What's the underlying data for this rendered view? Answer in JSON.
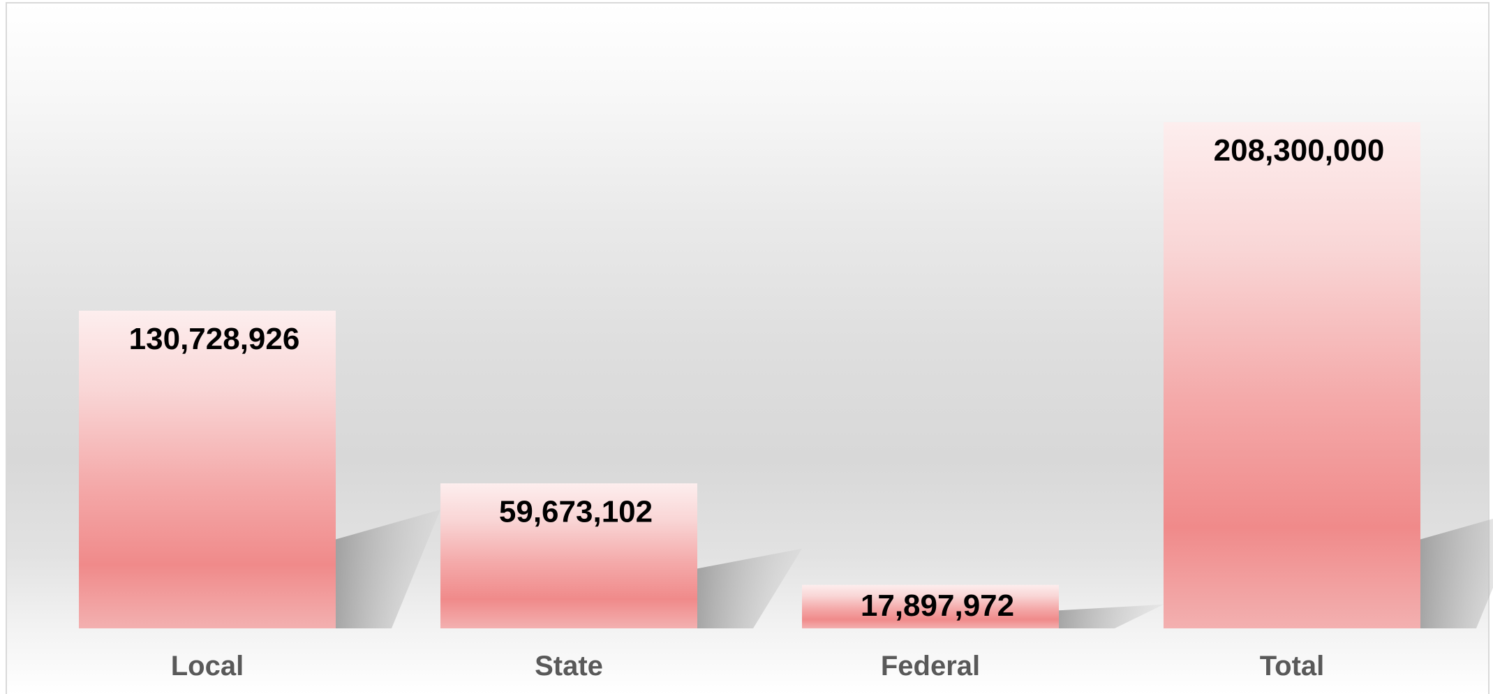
{
  "chart_data": {
    "type": "bar",
    "title": "",
    "xlabel": "",
    "ylabel": "",
    "categories": [
      "Local",
      "State",
      "Federal",
      "Total"
    ],
    "values": [
      130728926,
      59673102,
      17897972,
      208300000
    ],
    "value_labels": [
      "130,728,926",
      "59,673,102",
      "17,897,972",
      "208,300,000"
    ],
    "ylim": [
      0,
      250000000
    ],
    "grid": false,
    "legend": "none",
    "colors": {
      "bar_top": "#fdeeee",
      "bar_mid": "#f08a8a",
      "bar_bottom": "#f3b0b0",
      "shadow": "#9a9a9a",
      "value_text": "#000000",
      "category_text": "#595959"
    }
  }
}
